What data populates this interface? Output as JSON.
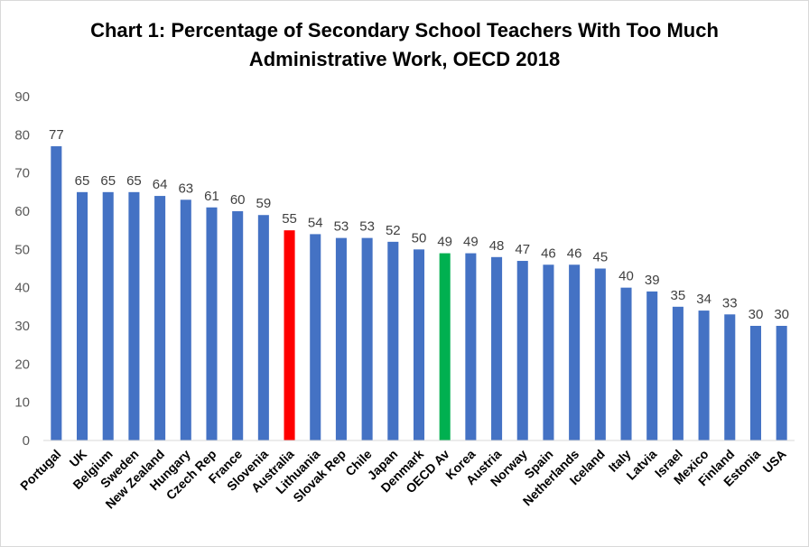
{
  "chart_data": {
    "type": "bar",
    "title_line1": "Chart 1: Percentage of Secondary School Teachers With Too Much",
    "title_line2": "Administrative Work, OECD 2018",
    "categories": [
      "Portugal",
      "UK",
      "Belgium",
      "Sweden",
      "New Zealand",
      "Hungary",
      "Czech Rep",
      "France",
      "Slovenia",
      "Australia",
      "Lithuania",
      "Slovak Rep",
      "Chile",
      "Japan",
      "Denmark",
      "OECD Av",
      "Korea",
      "Austria",
      "Norway",
      "Spain",
      "Netherlands",
      "Iceland",
      "Italy",
      "Latvia",
      "Israel",
      "Mexico",
      "Finland",
      "Estonia",
      "USA"
    ],
    "values": [
      77,
      65,
      65,
      65,
      64,
      63,
      61,
      60,
      59,
      55,
      54,
      53,
      53,
      52,
      50,
      49,
      49,
      48,
      47,
      46,
      46,
      45,
      40,
      39,
      35,
      34,
      33,
      30,
      30
    ],
    "data_labels": [
      "77",
      "65",
      "65",
      "65",
      "64",
      "63",
      "61",
      "60",
      "59",
      "55",
      "54",
      "53",
      "53",
      "52",
      "50",
      "49",
      "49",
      "48",
      "47",
      "46",
      "46",
      "45",
      "40",
      "39",
      "35",
      "34",
      "33",
      "30",
      "30"
    ],
    "yticks": [
      "0",
      "10",
      "20",
      "30",
      "40",
      "50",
      "60",
      "70",
      "80",
      "90"
    ],
    "ylim": [
      0,
      90
    ],
    "grid": false,
    "legend": "none",
    "colors": {
      "default": "#4472C4",
      "Australia": "#FF0000",
      "OECD Av": "#00B050"
    }
  }
}
